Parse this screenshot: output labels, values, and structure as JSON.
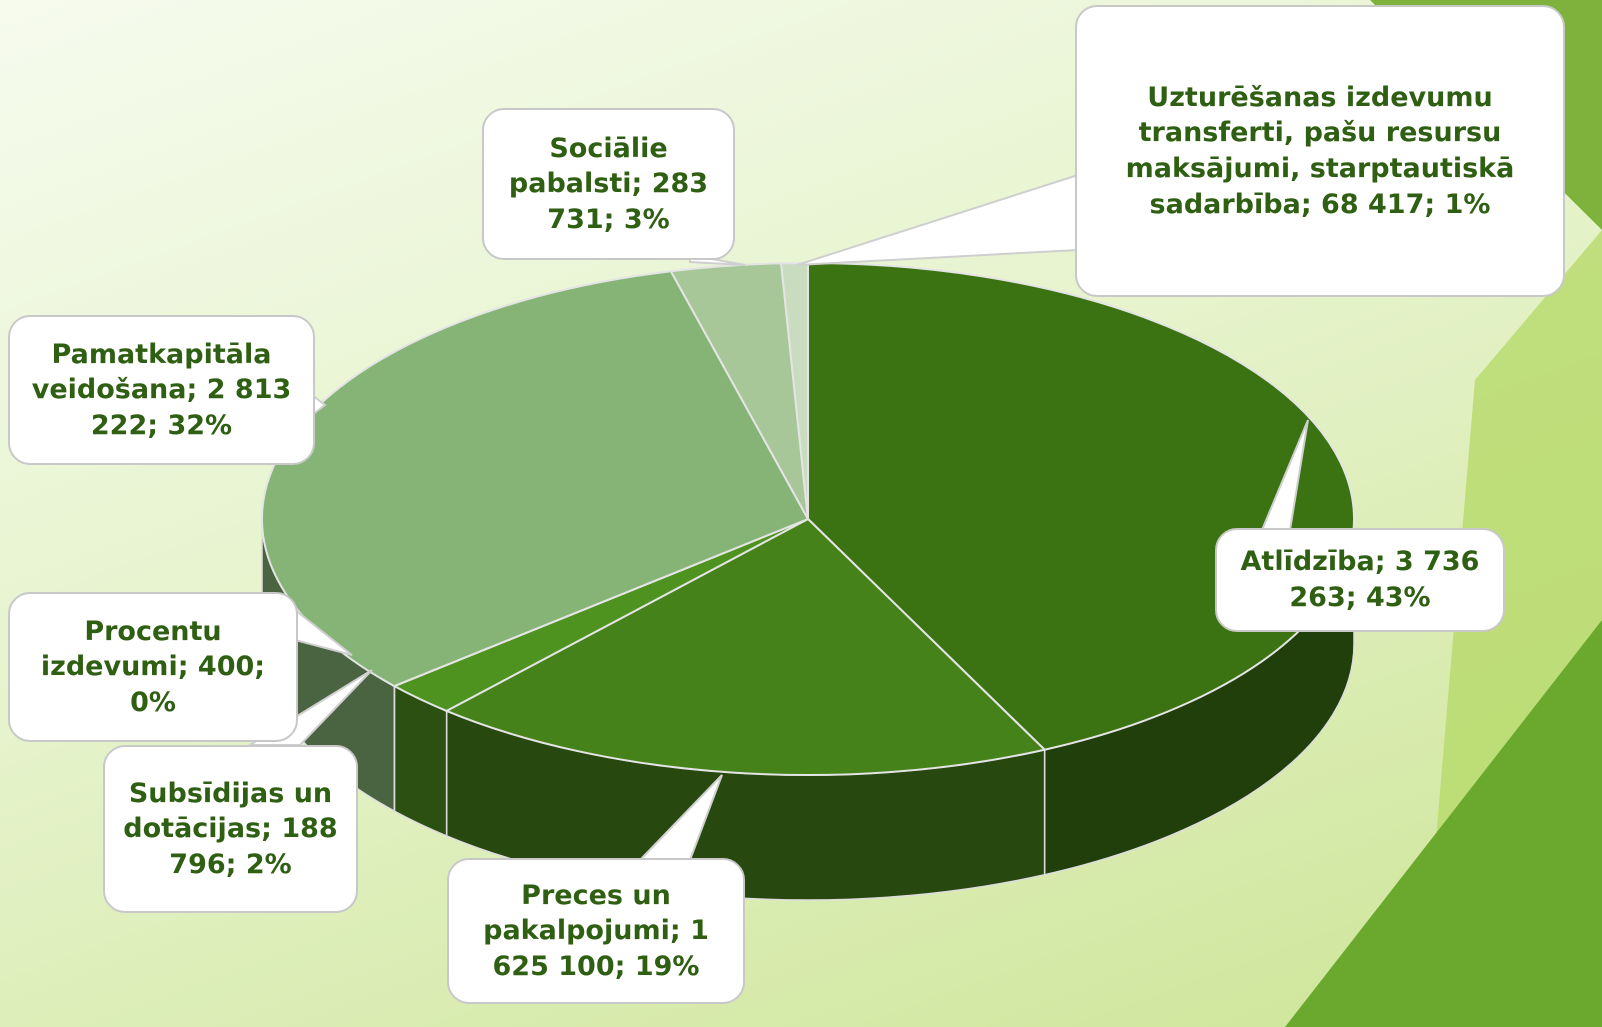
{
  "chart_data": {
    "type": "pie3d",
    "categories": [
      "Atlīdzība",
      "Preces un pakalpojumi",
      "Subsīdijas un dotācijas",
      "Procentu izdevumi",
      "Pamatkapitāla veidošana",
      "Sociālie pabalsti",
      "Uzturēšanas izdevumu transferti, pašu resursu maksājumi, starptautiskā sadarbība"
    ],
    "values": [
      3736263,
      1625100,
      188796,
      400,
      2813222,
      283731,
      68417
    ],
    "value_labels": [
      "3 736 263",
      "1 625 100",
      "188 796",
      "400",
      "2 813 222",
      "283 731",
      "68 417"
    ],
    "percents": [
      43,
      19,
      2,
      0,
      32,
      3,
      1
    ],
    "percent_labels": [
      "43%",
      "19%",
      "2%",
      "0%",
      "32%",
      "3%",
      "1%"
    ],
    "separator": ";",
    "colors": [
      "#3b7313",
      "#46821a",
      "#4e921f",
      "#6f9a5f",
      "#86b477",
      "#a7c798",
      "#c9dcc0"
    ]
  }
}
